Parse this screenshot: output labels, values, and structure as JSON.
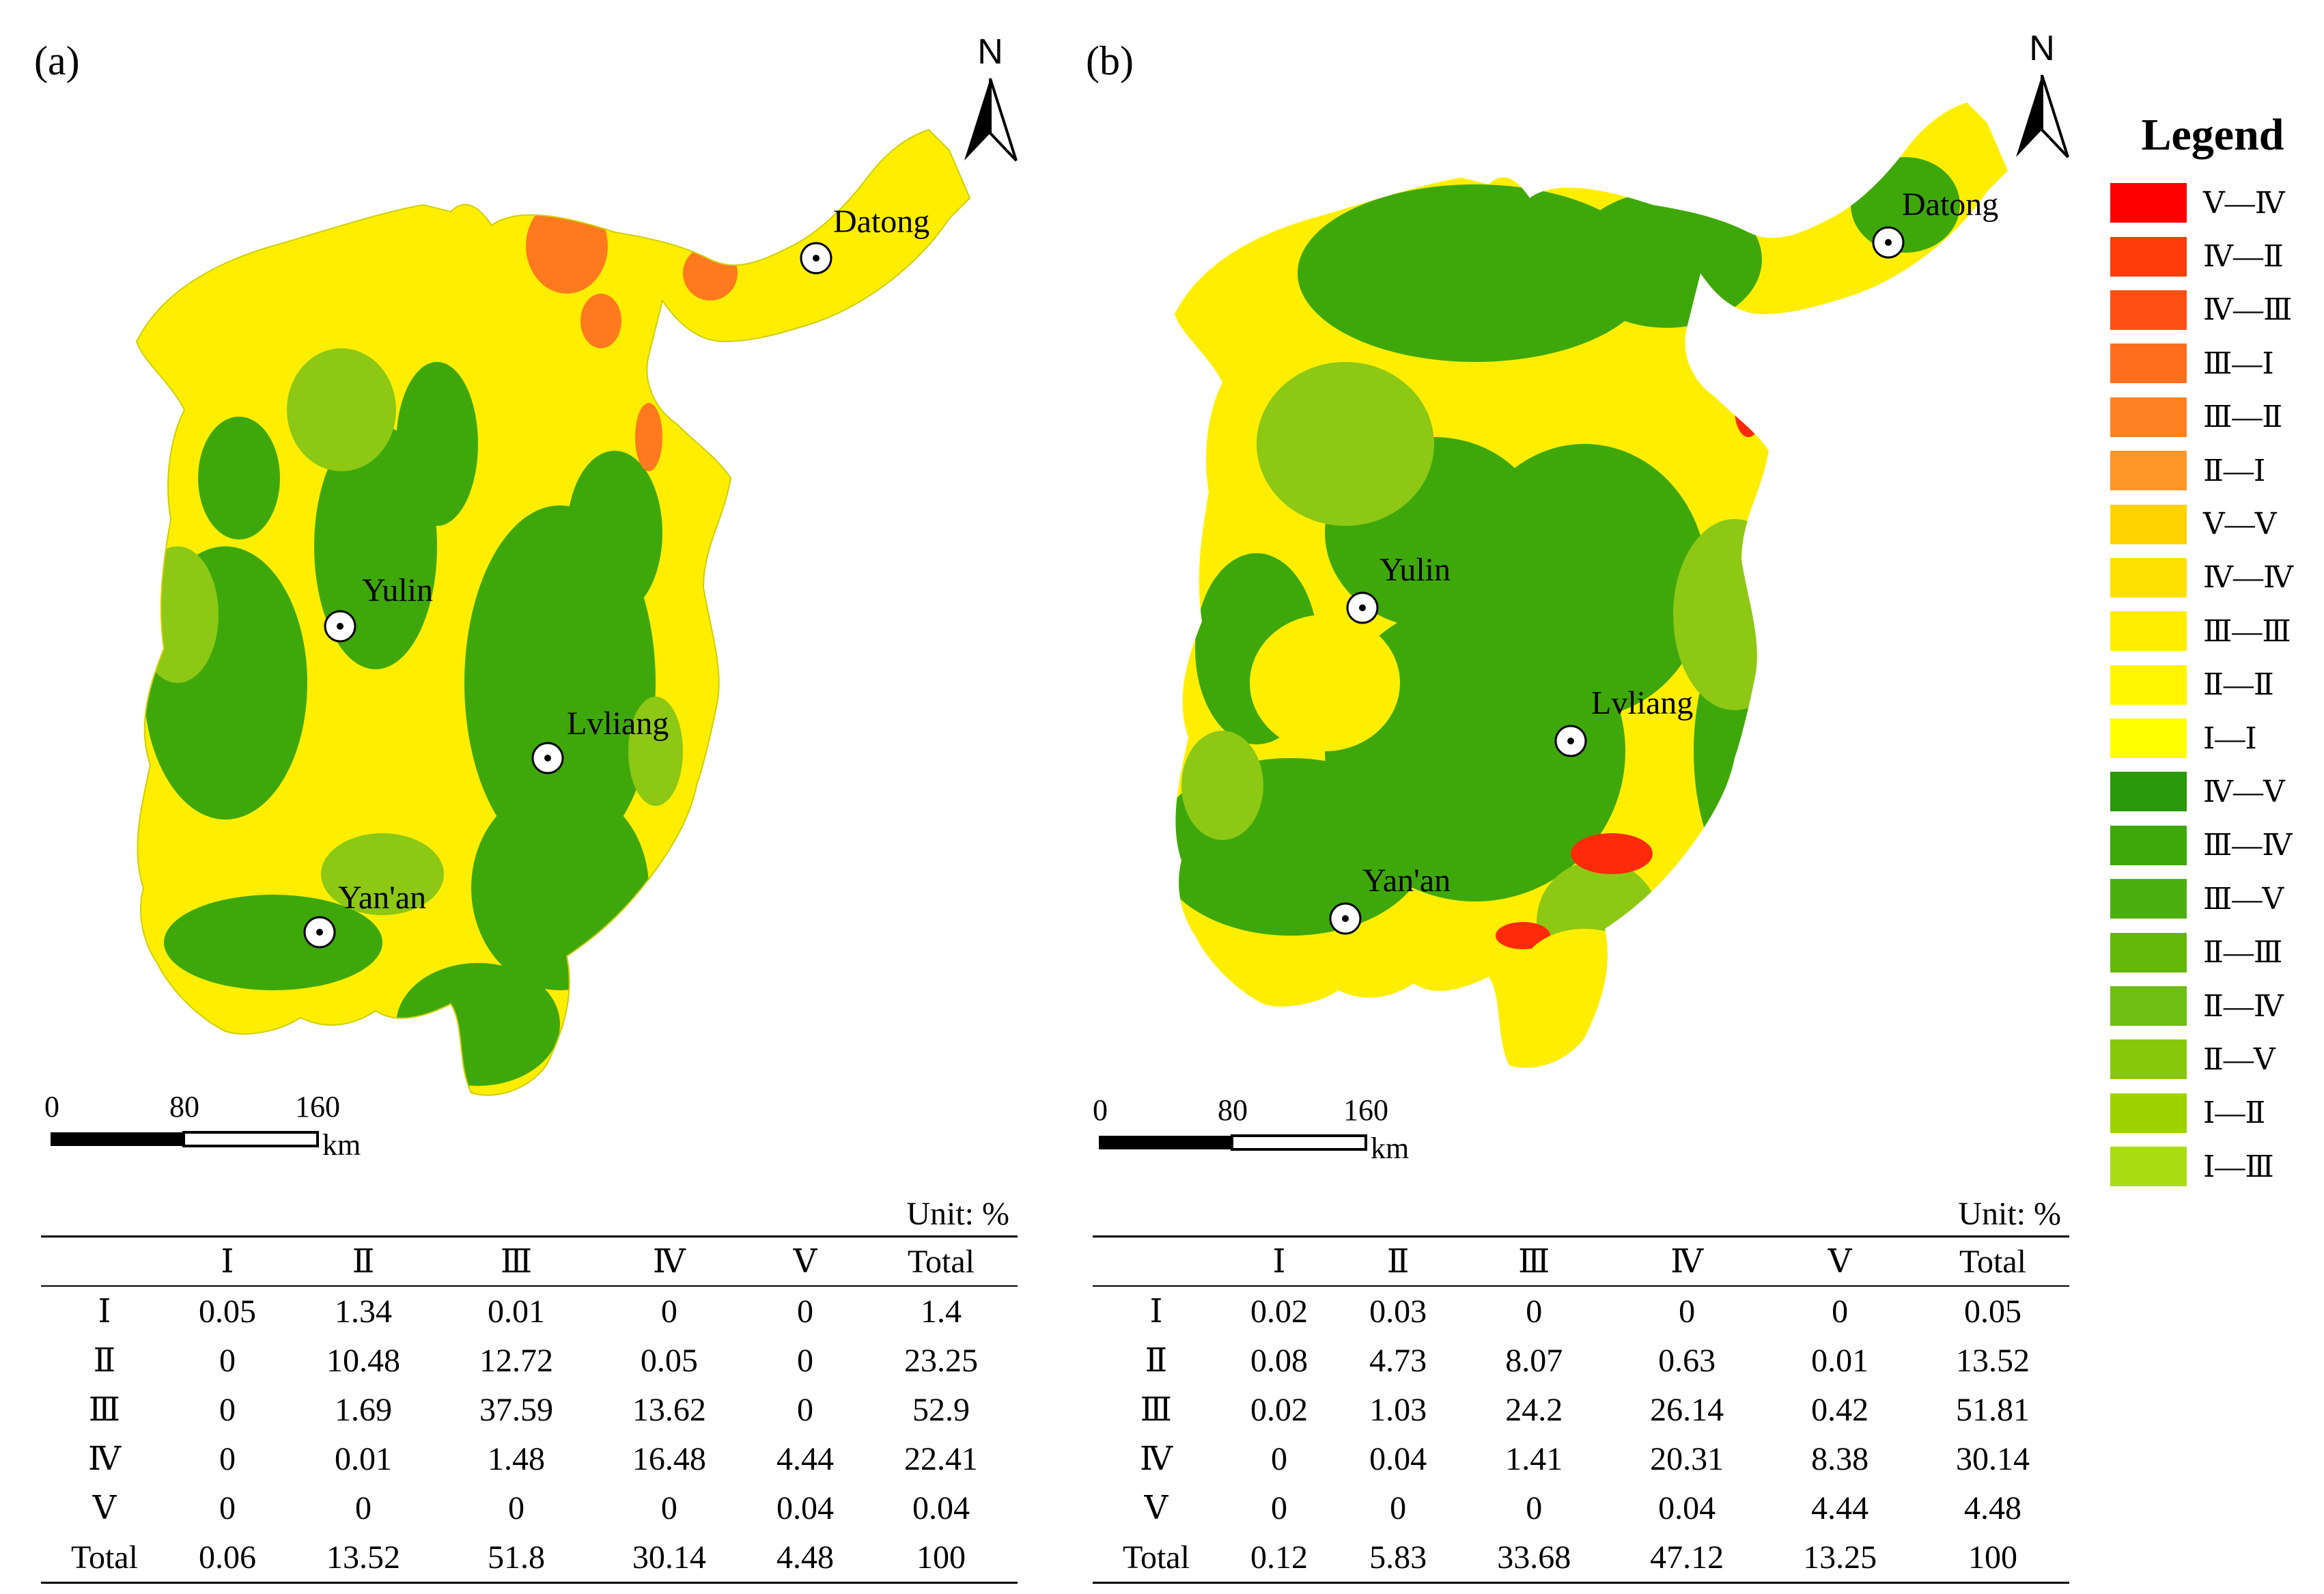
{
  "panels": [
    {
      "id": "a",
      "label": "(a)",
      "north": "N",
      "cities": [
        {
          "name": "Datong"
        },
        {
          "name": "Yulin"
        },
        {
          "name": "Lvliang"
        },
        {
          "name": "Yan'an"
        }
      ],
      "scale": {
        "ticks": [
          "0",
          "80",
          "160"
        ],
        "unit": "km"
      },
      "table": {
        "unit": "Unit: %",
        "columns": [
          "",
          "Ⅰ",
          "Ⅱ",
          "Ⅲ",
          "Ⅳ",
          "Ⅴ",
          "Total"
        ],
        "rows": [
          [
            "Ⅰ",
            "0.05",
            "1.34",
            "0.01",
            "0",
            "0",
            "1.4"
          ],
          [
            "Ⅱ",
            "0",
            "10.48",
            "12.72",
            "0.05",
            "0",
            "23.25"
          ],
          [
            "Ⅲ",
            "0",
            "1.69",
            "37.59",
            "13.62",
            "0",
            "52.9"
          ],
          [
            "Ⅳ",
            "0",
            "0.01",
            "1.48",
            "16.48",
            "4.44",
            "22.41"
          ],
          [
            "Ⅴ",
            "0",
            "0",
            "0",
            "0",
            "0.04",
            "0.04"
          ],
          [
            "Total",
            "0.06",
            "13.52",
            "51.8",
            "30.14",
            "4.48",
            "100"
          ]
        ]
      }
    },
    {
      "id": "b",
      "label": "(b)",
      "north": "N",
      "cities": [
        {
          "name": "Datong"
        },
        {
          "name": "Yulin"
        },
        {
          "name": "Lvliang"
        },
        {
          "name": "Yan'an"
        }
      ],
      "scale": {
        "ticks": [
          "0",
          "80",
          "160"
        ],
        "unit": "km"
      },
      "table": {
        "unit": "Unit: %",
        "columns": [
          "",
          "Ⅰ",
          "Ⅱ",
          "Ⅲ",
          "Ⅳ",
          "Ⅴ",
          "Total"
        ],
        "rows": [
          [
            "Ⅰ",
            "0.02",
            "0.03",
            "0",
            "0",
            "0",
            "0.05"
          ],
          [
            "Ⅱ",
            "0.08",
            "4.73",
            "8.07",
            "0.63",
            "0.01",
            "13.52"
          ],
          [
            "Ⅲ",
            "0.02",
            "1.03",
            "24.2",
            "26.14",
            "0.42",
            "51.81"
          ],
          [
            "Ⅳ",
            "0",
            "0.04",
            "1.41",
            "20.31",
            "8.38",
            "30.14"
          ],
          [
            "Ⅴ",
            "0",
            "0",
            "0",
            "0.04",
            "4.44",
            "4.48"
          ],
          [
            "Total",
            "0.12",
            "5.83",
            "33.68",
            "47.12",
            "13.25",
            "100"
          ]
        ]
      }
    }
  ],
  "legend": {
    "title": "Legend",
    "items": [
      {
        "label": "Ⅴ—Ⅳ",
        "color": "#ff0000"
      },
      {
        "label": "Ⅳ—Ⅱ",
        "color": "#ff3c0a"
      },
      {
        "label": "Ⅳ—Ⅲ",
        "color": "#ff5014"
      },
      {
        "label": "Ⅲ—Ⅰ",
        "color": "#ff6e1e"
      },
      {
        "label": "Ⅲ—Ⅱ",
        "color": "#ff8222"
      },
      {
        "label": "Ⅱ—Ⅰ",
        "color": "#ff9628"
      },
      {
        "label": "Ⅴ—Ⅴ",
        "color": "#ffd200"
      },
      {
        "label": "Ⅳ—Ⅳ",
        "color": "#ffe000"
      },
      {
        "label": "Ⅲ—Ⅲ",
        "color": "#ffee00"
      },
      {
        "label": "Ⅱ—Ⅱ",
        "color": "#fff500"
      },
      {
        "label": "Ⅰ—Ⅰ",
        "color": "#ffff00"
      },
      {
        "label": "Ⅳ—Ⅴ",
        "color": "#2a9a0a"
      },
      {
        "label": "Ⅲ—Ⅳ",
        "color": "#3ea80a"
      },
      {
        "label": "Ⅲ—Ⅴ",
        "color": "#4caf10"
      },
      {
        "label": "Ⅱ—Ⅲ",
        "color": "#64b80a"
      },
      {
        "label": "Ⅱ—Ⅳ",
        "color": "#6fbe14"
      },
      {
        "label": "Ⅱ—Ⅴ",
        "color": "#88c80a"
      },
      {
        "label": "Ⅰ—Ⅱ",
        "color": "#9ed200"
      },
      {
        "label": "Ⅰ—Ⅲ",
        "color": "#aadc14"
      }
    ]
  },
  "region_colors": {
    "yellow": "#ffee00",
    "light_green": "#8cc814",
    "green": "#3ea80a",
    "orange": "#ff7a1e",
    "red": "#ff2a0a"
  }
}
